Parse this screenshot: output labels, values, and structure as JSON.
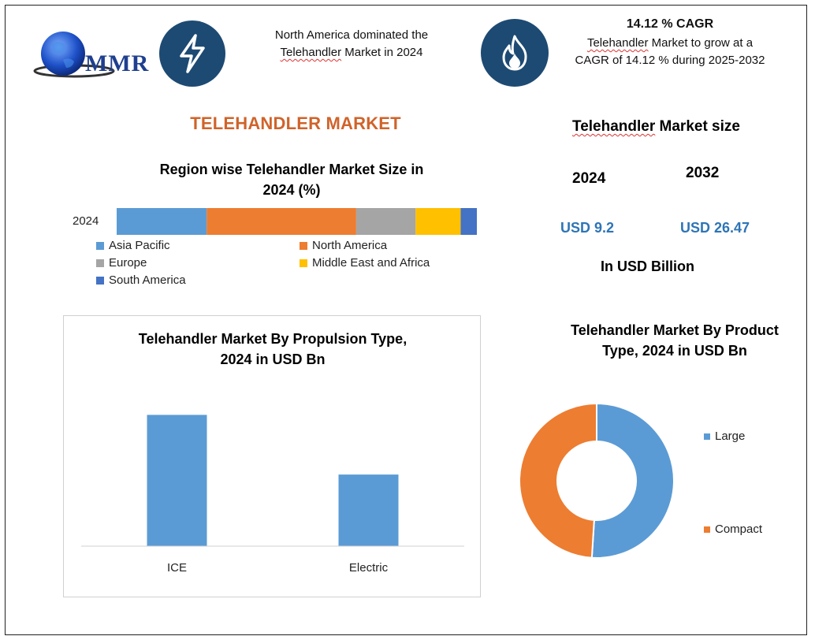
{
  "header": {
    "logo_text": "MMR",
    "dominance_line1": "North America dominated the",
    "dominance_line2_keyword": "Telehandler",
    "dominance_line2_rest": " Market in 2024",
    "cagr_title": "14.12 % CAGR",
    "cagr_line1_keyword": "Telehandler",
    "cagr_line1_rest": " Market to grow at a",
    "cagr_line2": "CAGR of 14.12 % during 2025-2032"
  },
  "main_title": "TELEHANDLER MARKET",
  "market_size": {
    "title_keyword": "Telehandler",
    "title_rest": " Market size",
    "year_a": "2024",
    "year_b": "2032",
    "value_a": "USD 9.2",
    "value_b": "USD 26.47",
    "unit": "In USD Billion"
  },
  "colors": {
    "blue": "#5b9bd5",
    "orange": "#ed7d31",
    "gray": "#a5a5a5",
    "yellow": "#ffc000",
    "dark_blue": "#4472c4",
    "navy_icon": "#1d4a73",
    "title_orange": "#d0632a",
    "value_blue": "#2e75b6"
  },
  "chart_data": [
    {
      "type": "bar",
      "orientation": "horizontal-stacked",
      "title_line1": "Region wise Telehandler Market Size in",
      "title_line2": "2024 (%)",
      "categories": [
        "2024"
      ],
      "series": [
        {
          "name": "Asia Pacific",
          "values": [
            25
          ],
          "color": "#5b9bd5"
        },
        {
          "name": "North America",
          "values": [
            41.5
          ],
          "color": "#ed7d31"
        },
        {
          "name": "Europe",
          "values": [
            16.5
          ],
          "color": "#a5a5a5"
        },
        {
          "name": "Middle East and Africa",
          "values": [
            12.5
          ],
          "color": "#ffc000"
        },
        {
          "name": "South America",
          "values": [
            4.5
          ],
          "color": "#4472c4"
        }
      ],
      "legend_position": "bottom"
    },
    {
      "type": "bar",
      "title_line1": "Telehandler Market By Propulsion Type,",
      "title_line2": "2024 in USD Bn",
      "categories": [
        "ICE",
        "Electric"
      ],
      "values": [
        5.5,
        3.0
      ],
      "ylim": [
        0,
        7
      ],
      "grid": false,
      "color": "#5b9bd5"
    },
    {
      "type": "pie",
      "variant": "donut",
      "title_line1": "Telehandler Market By Product",
      "title_line2": "Type, 2024 in USD Bn",
      "labels": [
        "Large",
        "Compact"
      ],
      "values": [
        51,
        49
      ],
      "colors": [
        "#5b9bd5",
        "#ed7d31"
      ],
      "legend_position": "right"
    }
  ]
}
